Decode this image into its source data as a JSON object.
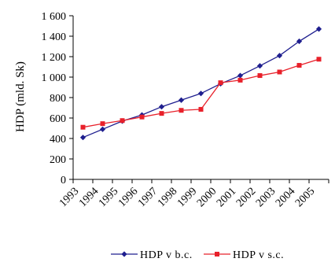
{
  "chart_data": {
    "type": "line",
    "ylabel": "HDP (mld. Sk)",
    "xlabel": "",
    "title": "",
    "x": [
      "1993",
      "1994",
      "1995",
      "1996",
      "1997",
      "1998",
      "1999",
      "2000",
      "2001",
      "2002",
      "2003",
      "2004",
      "2005"
    ],
    "y_ticks": [
      "0",
      "200",
      "400",
      "600",
      "800",
      "1 000",
      "1 200",
      "1 400",
      "1 600"
    ],
    "ylim": [
      0,
      1600
    ],
    "grid": false,
    "legend_position": "bottom",
    "series": [
      {
        "name": "HDP v b.c.",
        "color": "#1f1f8f",
        "marker": "diamond",
        "values": [
          410,
          490,
          570,
          630,
          710,
          775,
          840,
          935,
          1015,
          1110,
          1210,
          1350,
          1470
        ]
      },
      {
        "name": "HDP v s.c.",
        "color": "#e8202a",
        "marker": "square",
        "values": [
          510,
          545,
          575,
          610,
          645,
          675,
          685,
          945,
          970,
          1015,
          1050,
          1115,
          1175
        ]
      }
    ]
  }
}
